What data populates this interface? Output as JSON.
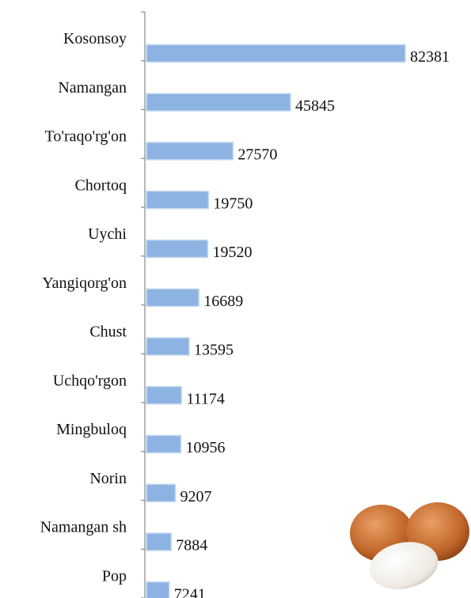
{
  "chart_data": {
    "type": "bar",
    "orientation": "horizontal",
    "categories": [
      "Kosonsoy",
      "Namangan",
      "To'raqo'rg'on",
      "Chortoq",
      "Uychi",
      "Yangiqorg'on",
      "Chust",
      "Uchqo'rgon",
      "Mingbuloq",
      "Norin",
      "Namangan sh",
      "Pop"
    ],
    "values": [
      82381,
      45845,
      27570,
      19750,
      19520,
      16689,
      13595,
      11174,
      10956,
      9207,
      7884,
      7241
    ],
    "color": "#8db3e2"
  }
}
